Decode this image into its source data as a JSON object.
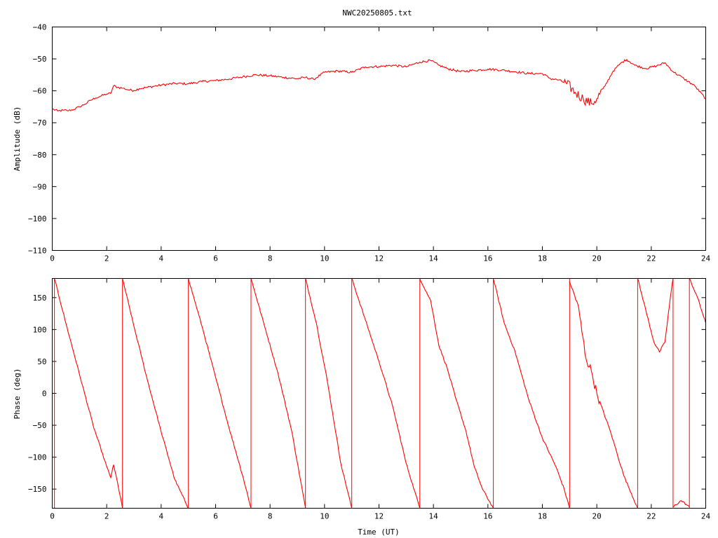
{
  "chart_data": [
    {
      "type": "line",
      "title": "NWC20250805.txt",
      "xlabel": "",
      "ylabel": "Amplitude (dB)",
      "xlim": [
        0,
        24
      ],
      "ylim": [
        -110,
        -40
      ],
      "x_ticks": [
        "0",
        "2",
        "4",
        "6",
        "8",
        "10",
        "12",
        "14",
        "16",
        "18",
        "20",
        "22",
        "24"
      ],
      "y_ticks": [
        "−40",
        "−50",
        "−60",
        "−70",
        "−80",
        "−90",
        "−100",
        "−110"
      ],
      "series_color": "#ff0000",
      "x": [
        0,
        0.2,
        0.4,
        0.6,
        0.8,
        1.0,
        1.2,
        1.4,
        1.6,
        1.8,
        2.0,
        2.15,
        2.25,
        2.4,
        2.6,
        2.8,
        3.0,
        3.2,
        3.5,
        4.0,
        4.5,
        5.0,
        5.5,
        6.0,
        6.5,
        7.0,
        7.5,
        8.0,
        8.5,
        9.0,
        9.3,
        9.6,
        10.0,
        10.5,
        11.0,
        11.5,
        12.0,
        12.5,
        13.0,
        13.5,
        13.9,
        14.2,
        14.5,
        15.0,
        15.5,
        16.0,
        16.5,
        17.0,
        17.5,
        18.0,
        18.3,
        18.6,
        18.9,
        19.2,
        19.5,
        19.8,
        20.0,
        20.3,
        20.6,
        20.9,
        21.1,
        21.4,
        21.8,
        22.2,
        22.5,
        22.8,
        23.2,
        23.6,
        24.0
      ],
      "y": [
        -65.7,
        -66.3,
        -66.1,
        -66.2,
        -65.8,
        -65.0,
        -64.2,
        -63.0,
        -62.2,
        -61.6,
        -61.0,
        -60.8,
        -58.4,
        -58.9,
        -59.2,
        -59.7,
        -59.9,
        -59.3,
        -58.9,
        -58.2,
        -57.7,
        -57.8,
        -57.1,
        -56.8,
        -56.3,
        -55.6,
        -55.0,
        -55.3,
        -55.8,
        -56.2,
        -55.8,
        -56.4,
        -54.2,
        -53.8,
        -54.2,
        -52.5,
        -52.4,
        -52.0,
        -52.5,
        -51.0,
        -50.5,
        -52.0,
        -53.0,
        -54.0,
        -53.6,
        -53.2,
        -53.5,
        -54.0,
        -54.6,
        -54.6,
        -56.2,
        -56.6,
        -57.8,
        -60.5,
        -62.5,
        -64.0,
        -62.5,
        -58.5,
        -53.8,
        -51.2,
        -50.2,
        -52.0,
        -53.0,
        -52.2,
        -51.2,
        -54.0,
        -56.2,
        -58.5,
        -62.5
      ]
    },
    {
      "type": "line",
      "title": "",
      "xlabel": "Time (UT)",
      "ylabel": "Phase (deg)",
      "xlim": [
        0,
        24
      ],
      "ylim": [
        -180,
        180
      ],
      "x_ticks": [
        "0",
        "2",
        "4",
        "6",
        "8",
        "10",
        "12",
        "14",
        "16",
        "18",
        "20",
        "22",
        "24"
      ],
      "y_ticks": [
        "150",
        "100",
        "50",
        "0",
        "−50",
        "−100",
        "−150"
      ],
      "series_color": "#ff0000",
      "segments": [
        {
          "x": [
            0.08,
            0.5,
            1.0,
            1.5,
            2.0,
            2.15,
            2.25,
            2.4,
            2.58
          ],
          "y": [
            180,
            110,
            30,
            -50,
            -115,
            -132,
            -112,
            -140,
            -180
          ]
        },
        {
          "x": [
            2.58,
            3.0,
            3.5,
            4.0,
            4.5,
            5.0
          ],
          "y": [
            180,
            105,
            20,
            -60,
            -135,
            -180
          ]
        },
        {
          "x": [
            5.0,
            5.5,
            6.0,
            6.5,
            7.0,
            7.3
          ],
          "y": [
            180,
            105,
            25,
            -55,
            -130,
            -180
          ]
        },
        {
          "x": [
            7.3,
            7.8,
            8.3,
            8.8,
            9.3
          ],
          "y": [
            180,
            105,
            30,
            -60,
            -180
          ]
        },
        {
          "x": [
            9.3,
            9.7,
            10.1,
            10.6,
            11.0
          ],
          "y": [
            180,
            110,
            20,
            -110,
            -180
          ]
        },
        {
          "x": [
            11.0,
            11.5,
            12.0,
            12.5,
            13.0,
            13.5
          ],
          "y": [
            180,
            115,
            50,
            -20,
            -110,
            -180
          ]
        },
        {
          "x": [
            13.5,
            13.9,
            14.2,
            14.5,
            14.8,
            15.2,
            15.5,
            15.8,
            16.2
          ],
          "y": [
            180,
            145,
            75,
            40,
            -5,
            -60,
            -115,
            -150,
            -180
          ]
        },
        {
          "x": [
            16.2,
            16.6,
            17.0,
            17.5,
            18.0,
            18.5,
            18.8,
            19.0
          ],
          "y": [
            180,
            110,
            65,
            -10,
            -70,
            -115,
            -150,
            -180
          ]
        },
        {
          "x": [
            19.0,
            19.3,
            19.6,
            19.8,
            20.0,
            20.5,
            21.0,
            21.5
          ],
          "y": [
            175,
            140,
            55,
            35,
            0,
            -60,
            -130,
            -180
          ]
        },
        {
          "x": [
            21.5,
            21.8,
            22.1,
            22.3,
            22.5,
            22.7,
            22.8
          ],
          "y": [
            180,
            130,
            80,
            65,
            80,
            150,
            180
          ]
        },
        {
          "x": [
            22.8,
            23.1,
            23.4
          ],
          "y": [
            -178,
            -168,
            -178
          ]
        },
        {
          "x": [
            23.4,
            23.7,
            24.0
          ],
          "y": [
            180,
            150,
            110
          ]
        }
      ],
      "wrap_jumps_x": [
        0.08,
        2.58,
        5.0,
        7.3,
        9.3,
        11.0,
        13.5,
        16.2,
        19.0,
        21.5,
        22.8,
        23.4
      ]
    }
  ]
}
